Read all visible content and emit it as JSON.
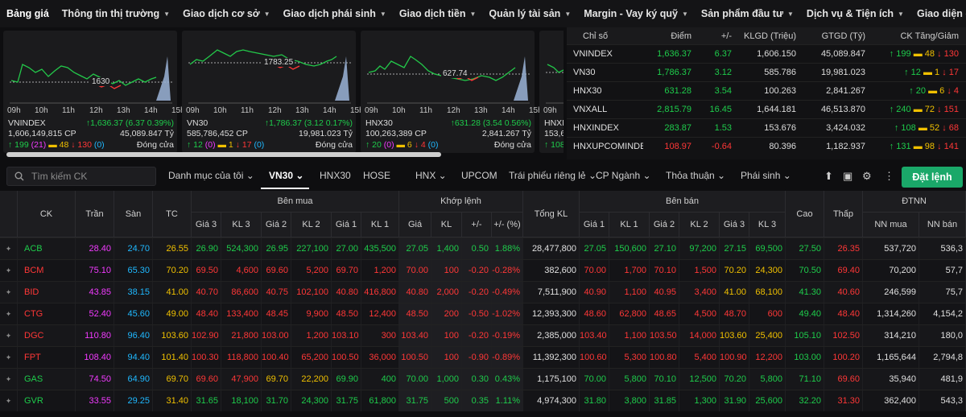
{
  "nav": {
    "items": [
      "Bảng giá",
      "Thông tin thị trường",
      "Giao dịch cơ sở",
      "Giao dịch phái sinh",
      "Giao dịch tiền",
      "Quản lý tài sản",
      "Margin - Vay ký quỹ",
      "Sản phẩm đầu tư",
      "Dịch vụ & Tiện ích",
      "Giao diện của tôi"
    ]
  },
  "charts": [
    {
      "name": "VNINDEX",
      "change": "↑1,636.37 (6.37 0.39%)",
      "volume": "1,606,149,815 CP",
      "value": "45,089.847 Tỷ",
      "up": "↑ 199",
      "up_ce": "(21)",
      "ref": "48",
      "down": "↓ 130",
      "down_fl": "(0)",
      "status": "Đóng cửa",
      "ref_price": "1630",
      "times": [
        "09h",
        "10h",
        "11h",
        "12h",
        "13h",
        "14h",
        "15h"
      ]
    },
    {
      "name": "VN30",
      "change": "↑1,786.37 (3.12 0.17%)",
      "volume": "585,786,452 CP",
      "value": "19,981.023 Tỷ",
      "up": "↑ 12",
      "up_ce": "(0)",
      "ref": "1",
      "down": "↓ 17",
      "down_fl": "(0)",
      "status": "Đóng cửa",
      "ref_price": "1783.25",
      "times": [
        "09h",
        "10h",
        "11h",
        "12h",
        "13h",
        "14h",
        "15h"
      ]
    },
    {
      "name": "HNX30",
      "change": "↑631.28 (3.54 0.56%)",
      "volume": "100,263,389 CP",
      "value": "2,841.267 Tỷ",
      "up": "↑ 20",
      "up_ce": "(0)",
      "ref": "6",
      "down": "↓ 4",
      "down_fl": "(0)",
      "status": "Đóng cửa",
      "ref_price": "627.74",
      "times": [
        "09h",
        "10h",
        "11h",
        "12h",
        "13h",
        "14h",
        "15h"
      ]
    },
    {
      "name": "HNXI",
      "change": "",
      "volume": "153,6",
      "value": "",
      "up": "↑ 108",
      "up_ce": "",
      "ref": "",
      "down": "",
      "down_fl": "",
      "status": "",
      "ref_price": "",
      "times": [
        "09h"
      ]
    }
  ],
  "indices": {
    "headers": [
      "Chỉ số",
      "Điểm",
      "+/-",
      "KLGD (Triệu)",
      "GTGD (Tỷ)",
      "CK Tăng/Giảm"
    ],
    "rows": [
      {
        "name": "VNINDEX",
        "point": "1,636.37",
        "chg": "6.37",
        "vol": "1,606.150",
        "val": "45,089.847",
        "up": "↑ 199",
        "ref": "48",
        "dn": "↓ 130",
        "cls": "up"
      },
      {
        "name": "VN30",
        "point": "1,786.37",
        "chg": "3.12",
        "vol": "585.786",
        "val": "19,981.023",
        "up": "↑ 12",
        "ref": "1",
        "dn": "↓ 17",
        "cls": "up"
      },
      {
        "name": "HNX30",
        "point": "631.28",
        "chg": "3.54",
        "vol": "100.263",
        "val": "2,841.267",
        "up": "↑ 20",
        "ref": "6",
        "dn": "↓ 4",
        "cls": "up"
      },
      {
        "name": "VNXALL",
        "point": "2,815.79",
        "chg": "16.45",
        "vol": "1,644.181",
        "val": "46,513.870",
        "up": "↑ 240",
        "ref": "72",
        "dn": "↓ 151",
        "cls": "up"
      },
      {
        "name": "HNXINDEX",
        "point": "283.87",
        "chg": "1.53",
        "vol": "153.676",
        "val": "3,424.032",
        "up": "↑ 108",
        "ref": "52",
        "dn": "↓ 68",
        "cls": "up"
      },
      {
        "name": "HNXUPCOMINDE",
        "point": "108.97",
        "chg": "-0.64",
        "vol": "80.396",
        "val": "1,182.937",
        "up": "↑ 131",
        "ref": "98",
        "dn": "↓ 141",
        "cls": "dn"
      }
    ]
  },
  "toolbar": {
    "search_placeholder": "Tìm kiếm CK",
    "tabs": [
      "Danh mục của tôi",
      "VN30",
      "HNX30",
      "HOSE",
      "HNX",
      "UPCOM",
      "Trái phiếu riêng lẻ",
      "CP Ngành",
      "Thỏa thuận",
      "Phái sinh"
    ],
    "order": "Đặt lệnh"
  },
  "table": {
    "groups": {
      "ck": "CK",
      "tran": "Trần",
      "san": "Sàn",
      "tc": "TC",
      "buy": "Bên mua",
      "match": "Khớp lệnh",
      "total": "Tổng KL",
      "sell": "Bên bán",
      "high": "Cao",
      "low": "Thấp",
      "foreign": "ĐTNN"
    },
    "sub": {
      "g3": "Giá 3",
      "kl3": "KL 3",
      "g2": "Giá 2",
      "kl2": "KL 2",
      "g1": "Giá 1",
      "kl1": "KL 1",
      "gia": "Giá",
      "kl": "KL",
      "pm": "+/-",
      "pct": "+/- (%)",
      "kl1b": "KL 1",
      "g1b": "Giá 1",
      "kl2b": "KL 2",
      "g2b": "Giá 2",
      "kl3b": "KL 3",
      "g3b": "Giá 3",
      "nnbuy": "NN mua",
      "nnsell": "NN bán"
    },
    "rows": [
      {
        "ck": "ACB",
        "c": "up",
        "tran": "28.40",
        "san": "24.70",
        "tc": "26.55",
        "b3": "26.90",
        "bk3": "524,300",
        "b2": "26.95",
        "bk2": "227,100",
        "b1": "27.00",
        "bk1": "435,500",
        "m": "27.05",
        "mk": "1,400",
        "pm": "0.50",
        "pct": "1.88%",
        "tot": "28,477,800",
        "s1": "27.05",
        "sk1": "150,600",
        "s2": "27.10",
        "sk2": "97,200",
        "s3": "27.15",
        "sk3": "69,500",
        "hi": "27.50",
        "lo": "26.35",
        "nb": "537,720",
        "ns": "536,3"
      },
      {
        "ck": "BCM",
        "c": "dn",
        "tran": "75.10",
        "san": "65.30",
        "tc": "70.20",
        "b3": "69.50",
        "bk3": "4,600",
        "b2": "69.60",
        "bk2": "5,200",
        "b1": "69.70",
        "bk1": "1,200",
        "m": "70.00",
        "mk": "100",
        "pm": "-0.20",
        "pct": "-0.28%",
        "tot": "382,600",
        "s1": "70.00",
        "sk1": "1,700",
        "s2": "70.10",
        "sk2": "1,500",
        "s3": "70.20",
        "sk3": "24,300",
        "hi": "70.50",
        "lo": "69.40",
        "nb": "70,200",
        "ns": "57,7"
      },
      {
        "ck": "BID",
        "c": "dn",
        "tran": "43.85",
        "san": "38.15",
        "tc": "41.00",
        "b3": "40.70",
        "bk3": "86,600",
        "b2": "40.75",
        "bk2": "102,100",
        "b1": "40.80",
        "bk1": "416,800",
        "m": "40.80",
        "mk": "2,000",
        "pm": "-0.20",
        "pct": "-0.49%",
        "tot": "7,511,900",
        "s1": "40.90",
        "sk1": "1,100",
        "s2": "40.95",
        "sk2": "3,400",
        "s3": "41.00",
        "sk3": "68,100",
        "hi": "41.30",
        "lo": "40.60",
        "nb": "246,599",
        "ns": "75,7"
      },
      {
        "ck": "CTG",
        "c": "dn",
        "tran": "52.40",
        "san": "45.60",
        "tc": "49.00",
        "b3": "48.40",
        "bk3": "133,400",
        "b2": "48.45",
        "bk2": "9,900",
        "b1": "48.50",
        "bk1": "12,400",
        "m": "48.50",
        "mk": "200",
        "pm": "-0.50",
        "pct": "-1.02%",
        "tot": "12,393,300",
        "s1": "48.60",
        "sk1": "62,800",
        "s2": "48.65",
        "sk2": "4,500",
        "s3": "48.70",
        "sk3": "600",
        "hi": "49.40",
        "lo": "48.40",
        "nb": "1,314,260",
        "ns": "4,154,2"
      },
      {
        "ck": "DGC",
        "c": "dn",
        "tran": "110.80",
        "san": "96.40",
        "tc": "103.60",
        "b3": "102.90",
        "bk3": "21,800",
        "b2": "103.00",
        "bk2": "1,200",
        "b1": "103.10",
        "bk1": "300",
        "m": "103.40",
        "mk": "100",
        "pm": "-0.20",
        "pct": "-0.19%",
        "tot": "2,385,000",
        "s1": "103.40",
        "sk1": "1,100",
        "s2": "103.50",
        "sk2": "14,000",
        "s3": "103.60",
        "sk3": "25,400",
        "hi": "105.10",
        "lo": "102.50",
        "nb": "314,210",
        "ns": "180,0"
      },
      {
        "ck": "FPT",
        "c": "dn",
        "tran": "108.40",
        "san": "94.40",
        "tc": "101.40",
        "b3": "100.30",
        "bk3": "118,800",
        "b2": "100.40",
        "bk2": "65,200",
        "b1": "100.50",
        "bk1": "36,000",
        "m": "100.50",
        "mk": "100",
        "pm": "-0.90",
        "pct": "-0.89%",
        "tot": "11,392,300",
        "s1": "100.60",
        "sk1": "5,300",
        "s2": "100.80",
        "sk2": "5,400",
        "s3": "100.90",
        "sk3": "12,200",
        "hi": "103.00",
        "lo": "100.20",
        "nb": "1,165,644",
        "ns": "2,794,8"
      },
      {
        "ck": "GAS",
        "c": "up",
        "tran": "74.50",
        "san": "64.90",
        "tc": "69.70",
        "b3": "69.60",
        "bk3": "47,900",
        "b2": "69.70",
        "bk2": "22,200",
        "b1": "69.90",
        "bk1": "400",
        "m": "70.00",
        "mk": "1,000",
        "pm": "0.30",
        "pct": "0.43%",
        "tot": "1,175,100",
        "s1": "70.00",
        "sk1": "5,800",
        "s2": "70.10",
        "sk2": "12,500",
        "s3": "70.20",
        "sk3": "5,800",
        "hi": "71.10",
        "lo": "69.60",
        "nb": "35,940",
        "ns": "481,9"
      },
      {
        "ck": "GVR",
        "c": "up",
        "tran": "33.55",
        "san": "29.25",
        "tc": "31.40",
        "b3": "31.65",
        "bk3": "18,100",
        "b2": "31.70",
        "bk2": "24,300",
        "b1": "31.75",
        "bk1": "61,800",
        "m": "31.75",
        "mk": "500",
        "pm": "0.35",
        "pct": "1.11%",
        "tot": "4,974,300",
        "s1": "31.80",
        "sk1": "3,800",
        "s2": "31.85",
        "sk2": "1,300",
        "s3": "31.90",
        "sk3": "25,600",
        "hi": "32.20",
        "lo": "31.30",
        "nb": "362,400",
        "ns": "543,3"
      }
    ]
  }
}
